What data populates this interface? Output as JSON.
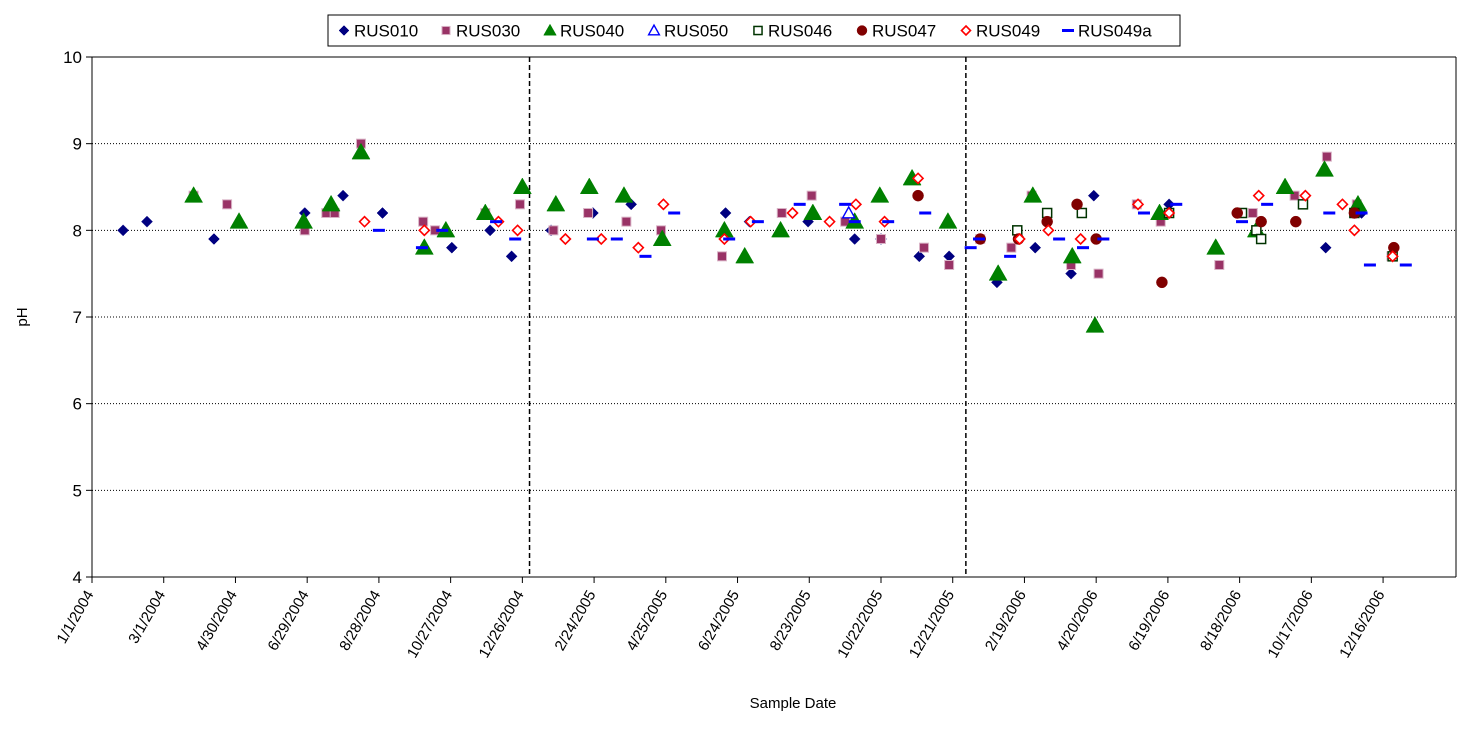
{
  "chart_data": {
    "type": "scatter",
    "xlabel": "Sample Date",
    "ylabel": "pH",
    "xlim": [
      "1/1/2004",
      "2/15/2007"
    ],
    "ylim": [
      4,
      10
    ],
    "x_tick_labels": [
      "1/1/2004",
      "3/1/2004",
      "4/30/2004",
      "6/29/2004",
      "8/28/2004",
      "10/27/2004",
      "12/26/2004",
      "2/24/2005",
      "4/25/2005",
      "6/24/2005",
      "8/23/2005",
      "10/22/2005",
      "12/21/2005",
      "2/19/2006",
      "4/20/2006",
      "6/19/2006",
      "8/18/2006",
      "10/17/2006",
      "12/16/2006"
    ],
    "y_tick_labels": [
      "4",
      "5",
      "6",
      "7",
      "8",
      "9",
      "10"
    ],
    "grid": "horizontal-dotted",
    "year_dividers": [
      "1/1/2005",
      "1/1/2006"
    ],
    "legend_position": "top",
    "series": [
      {
        "name": "RUS010",
        "marker": "diamond-filled",
        "color": "#000080",
        "points": [
          [
            "1/27/2004",
            8.0
          ],
          [
            "2/16/2004",
            8.1
          ],
          [
            "4/12/2004",
            7.9
          ],
          [
            "6/27/2004",
            8.2
          ],
          [
            "7/29/2004",
            8.4
          ],
          [
            "8/31/2004",
            8.2
          ],
          [
            "10/28/2004",
            7.8
          ],
          [
            "11/29/2004",
            8.0
          ],
          [
            "12/17/2004",
            7.7
          ],
          [
            "1/19/2005",
            8.0
          ],
          [
            "2/23/2005",
            8.2
          ],
          [
            "3/27/2005",
            8.3
          ],
          [
            "6/14/2005",
            8.2
          ],
          [
            "7/4/2005",
            8.1
          ],
          [
            "8/22/2005",
            8.1
          ],
          [
            "9/30/2005",
            7.9
          ],
          [
            "10/22/2005",
            7.9
          ],
          [
            "11/23/2005",
            7.7
          ],
          [
            "12/18/2005",
            7.7
          ],
          [
            "1/27/2006",
            7.4
          ],
          [
            "2/28/2006",
            7.8
          ],
          [
            "3/30/2006",
            7.5
          ],
          [
            "4/18/2006",
            8.4
          ],
          [
            "6/20/2006",
            8.3
          ],
          [
            "10/29/2006",
            7.8
          ],
          [
            "11/28/2006",
            8.2
          ]
        ]
      },
      {
        "name": "RUS030",
        "marker": "square-filled",
        "color": "#993366",
        "points": [
          [
            "3/26/2004",
            8.4
          ],
          [
            "4/23/2004",
            8.3
          ],
          [
            "6/27/2004",
            8.0
          ],
          [
            "7/15/2004",
            8.2
          ],
          [
            "7/22/2004",
            8.2
          ],
          [
            "8/13/2004",
            9.0
          ],
          [
            "10/4/2004",
            8.1
          ],
          [
            "10/14/2004",
            8.0
          ],
          [
            "11/25/2004",
            8.2
          ],
          [
            "12/24/2004",
            8.3
          ],
          [
            "1/21/2005",
            8.0
          ],
          [
            "2/19/2005",
            8.2
          ],
          [
            "3/23/2005",
            8.1
          ],
          [
            "4/21/2005",
            8.0
          ],
          [
            "6/11/2005",
            7.7
          ],
          [
            "7/31/2005",
            8.2
          ],
          [
            "8/25/2005",
            8.4
          ],
          [
            "9/22/2005",
            8.1
          ],
          [
            "10/22/2005",
            7.9
          ],
          [
            "11/27/2005",
            7.8
          ],
          [
            "12/18/2005",
            7.6
          ],
          [
            "1/13/2006",
            7.9
          ],
          [
            "2/8/2006",
            7.8
          ],
          [
            "2/25/2006",
            8.4
          ],
          [
            "3/30/2006",
            7.6
          ],
          [
            "4/22/2006",
            7.5
          ],
          [
            "5/24/2006",
            8.3
          ],
          [
            "6/13/2006",
            8.1
          ],
          [
            "8/1/2006",
            7.6
          ],
          [
            "8/29/2006",
            8.2
          ],
          [
            "10/3/2006",
            8.4
          ],
          [
            "10/30/2006",
            8.85
          ],
          [
            "11/24/2006",
            8.3
          ],
          [
            "12/23/2006",
            7.7
          ]
        ]
      },
      {
        "name": "RUS040",
        "marker": "triangle-filled",
        "color": "#008000",
        "points": [
          [
            "3/26/2004",
            8.4
          ],
          [
            "5/3/2004",
            8.1
          ],
          [
            "6/26/2004",
            8.1
          ],
          [
            "7/19/2004",
            8.3
          ],
          [
            "8/13/2004",
            8.9
          ],
          [
            "10/5/2004",
            7.8
          ],
          [
            "10/23/2004",
            8.0
          ],
          [
            "11/25/2004",
            8.2
          ],
          [
            "12/26/2004",
            8.5
          ],
          [
            "1/23/2005",
            8.3
          ],
          [
            "2/20/2005",
            8.5
          ],
          [
            "3/21/2005",
            8.4
          ],
          [
            "4/22/2005",
            7.9
          ],
          [
            "6/13/2005",
            8.0
          ],
          [
            "6/30/2005",
            7.7
          ],
          [
            "7/30/2005",
            8.0
          ],
          [
            "8/26/2005",
            8.2
          ],
          [
            "9/30/2005",
            8.1
          ],
          [
            "10/21/2005",
            8.4
          ],
          [
            "11/17/2005",
            8.6
          ],
          [
            "12/17/2005",
            8.1
          ],
          [
            "1/28/2006",
            7.5
          ],
          [
            "2/26/2006",
            8.4
          ],
          [
            "3/31/2006",
            7.7
          ],
          [
            "4/19/2006",
            6.9
          ],
          [
            "6/12/2006",
            8.2
          ],
          [
            "7/29/2006",
            7.8
          ],
          [
            "9/1/2006",
            8.0
          ],
          [
            "9/25/2006",
            8.5
          ],
          [
            "10/28/2006",
            8.7
          ],
          [
            "11/25/2006",
            8.3
          ]
        ]
      },
      {
        "name": "RUS050",
        "marker": "triangle-open",
        "color": "#0000FF",
        "points": [
          [
            "9/25/2005",
            8.2
          ]
        ]
      },
      {
        "name": "RUS046",
        "marker": "square-open",
        "color": "#003300",
        "points": [
          [
            "2/13/2006",
            8.0
          ],
          [
            "3/10/2006",
            8.2
          ],
          [
            "4/8/2006",
            8.2
          ],
          [
            "6/20/2006",
            8.2
          ],
          [
            "8/20/2006",
            8.2
          ],
          [
            "9/1/2006",
            8.0
          ],
          [
            "9/5/2006",
            7.9
          ],
          [
            "10/10/2006",
            8.3
          ],
          [
            "11/22/2006",
            8.2
          ],
          [
            "12/24/2006",
            7.7
          ]
        ]
      },
      {
        "name": "RUS047",
        "marker": "circle-filled",
        "color": "#800000",
        "points": [
          [
            "11/22/2005",
            8.4
          ],
          [
            "1/13/2006",
            7.9
          ],
          [
            "2/14/2006",
            7.9
          ],
          [
            "3/10/2006",
            8.1
          ],
          [
            "4/4/2006",
            8.3
          ],
          [
            "4/20/2006",
            7.9
          ],
          [
            "6/14/2006",
            7.4
          ],
          [
            "8/16/2006",
            8.2
          ],
          [
            "9/5/2006",
            8.1
          ],
          [
            "10/4/2006",
            8.1
          ],
          [
            "11/22/2006",
            8.2
          ],
          [
            "12/25/2006",
            7.8
          ]
        ]
      },
      {
        "name": "RUS049",
        "marker": "diamond-open",
        "color": "#FF0000",
        "points": [
          [
            "8/16/2004",
            8.1
          ],
          [
            "10/5/2004",
            8.0
          ],
          [
            "12/6/2004",
            8.1
          ],
          [
            "12/22/2004",
            8.0
          ],
          [
            "1/31/2005",
            7.9
          ],
          [
            "3/2/2005",
            7.9
          ],
          [
            "4/2/2005",
            7.8
          ],
          [
            "4/23/2005",
            8.3
          ],
          [
            "6/13/2005",
            7.9
          ],
          [
            "7/5/2005",
            8.1
          ],
          [
            "8/9/2005",
            8.2
          ],
          [
            "9/9/2005",
            8.1
          ],
          [
            "10/1/2005",
            8.3
          ],
          [
            "10/25/2005",
            8.1
          ],
          [
            "11/22/2005",
            8.6
          ],
          [
            "2/15/2006",
            7.9
          ],
          [
            "3/11/2006",
            8.0
          ],
          [
            "4/7/2006",
            7.9
          ],
          [
            "5/25/2006",
            8.3
          ],
          [
            "6/20/2006",
            8.2
          ],
          [
            "9/3/2006",
            8.4
          ],
          [
            "10/12/2006",
            8.4
          ],
          [
            "11/12/2006",
            8.3
          ],
          [
            "11/22/2006",
            8.0
          ],
          [
            "12/24/2006",
            7.7
          ]
        ]
      },
      {
        "name": "RUS049a",
        "marker": "dash",
        "color": "#0000FF",
        "points": [
          [
            "8/28/2004",
            8.0
          ],
          [
            "10/3/2004",
            7.8
          ],
          [
            "10/20/2004",
            8.0
          ],
          [
            "12/4/2004",
            8.1
          ],
          [
            "12/20/2004",
            7.9
          ],
          [
            "2/23/2005",
            7.9
          ],
          [
            "3/15/2005",
            7.9
          ],
          [
            "4/8/2005",
            7.7
          ],
          [
            "5/2/2005",
            8.2
          ],
          [
            "6/17/2005",
            7.9
          ],
          [
            "7/11/2005",
            8.1
          ],
          [
            "8/15/2005",
            8.3
          ],
          [
            "9/22/2005",
            8.3
          ],
          [
            "9/30/2005",
            8.1
          ],
          [
            "10/28/2005",
            8.1
          ],
          [
            "11/28/2005",
            8.2
          ],
          [
            "1/5/2006",
            7.8
          ],
          [
            "1/12/2006",
            7.9
          ],
          [
            "2/7/2006",
            7.7
          ],
          [
            "3/20/2006",
            7.9
          ],
          [
            "4/9/2006",
            7.8
          ],
          [
            "4/26/2006",
            7.9
          ],
          [
            "5/30/2006",
            8.2
          ],
          [
            "6/26/2006",
            8.3
          ],
          [
            "8/20/2006",
            8.1
          ],
          [
            "9/10/2006",
            8.3
          ],
          [
            "11/1/2006",
            8.2
          ],
          [
            "11/28/2006",
            8.2
          ],
          [
            "12/5/2006",
            7.6
          ],
          [
            "1/4/2007",
            7.6
          ]
        ]
      }
    ]
  }
}
